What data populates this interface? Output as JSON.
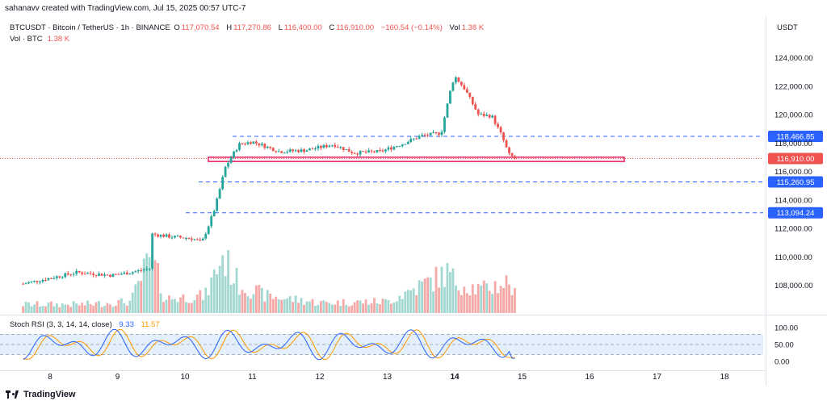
{
  "header": {
    "attribution": "sahanavv created with TradingView.com, Jul 15, 2025 00:57 UTC-7"
  },
  "legend": {
    "symbol": "BTCUSDT · Bitcoin / TetherUS · 1h · BINANCE",
    "o_label": "O",
    "o_value": "117,070.54",
    "h_label": "H",
    "h_value": "117,270.86",
    "l_label": "L",
    "l_value": "116,400.00",
    "c_label": "C",
    "c_value": "116,910.00",
    "change": "−160.54 (−0.14%)",
    "vol_label": "Vol",
    "vol_value": "1.38 K",
    "vol_row_label": "Vol · BTC",
    "vol_row_value": "1.38 K"
  },
  "price_axis": {
    "currency": "USDT",
    "ticks": [
      "124,000.00",
      "122,000.00",
      "120,000.00",
      "118,000.00",
      "116,000.00",
      "114,000.00",
      "112,000.00",
      "110,000.00",
      "108,000.00"
    ]
  },
  "levels": [
    {
      "value": 118466.85,
      "label": "118,466.85"
    },
    {
      "value": 115260.95,
      "label": "115,260.95"
    },
    {
      "value": 113094.24,
      "label": "113,094.24"
    }
  ],
  "current_price": {
    "value": 116910,
    "label": "116,910.00"
  },
  "rsi": {
    "title": "Stoch RSI",
    "params": "(3, 3, 14, 14, close)",
    "k_value": "9.33",
    "d_value": "11.57",
    "ticks": [
      "100.00",
      "50.00",
      "0.00"
    ]
  },
  "time_axis": {
    "labels": [
      "8",
      "9",
      "10",
      "11",
      "12",
      "13",
      "14",
      "15",
      "16",
      "17",
      "18"
    ],
    "bold_label": "14"
  },
  "footer": {
    "brand": "TradingView"
  },
  "colors": {
    "up": "#26a69a",
    "down": "#ef5350",
    "vol_up": "#a3d8d2",
    "vol_down": "#f5a9a7",
    "level": "#2962ff",
    "zone": "#e91e63",
    "rsi_k": "#2962ff",
    "rsi_d": "#ff9800"
  },
  "chart_data": {
    "type": "candlestick",
    "symbol": "BTCUSDT",
    "interval": "1h",
    "exchange": "BINANCE",
    "ylim": [
      106500,
      125000
    ],
    "x_days": [
      "8",
      "9",
      "10",
      "11",
      "12",
      "13",
      "14",
      "15",
      "16",
      "17",
      "18"
    ],
    "ohlc_anchors": [
      {
        "t": 7.6,
        "price": 108100
      },
      {
        "t": 8.0,
        "price": 108500
      },
      {
        "t": 8.4,
        "price": 108900
      },
      {
        "t": 8.9,
        "price": 108700
      },
      {
        "t": 9.2,
        "price": 108900
      },
      {
        "t": 9.49,
        "price": 109200
      },
      {
        "t": 9.5,
        "price": 111600
      },
      {
        "t": 9.8,
        "price": 111400
      },
      {
        "t": 10.1,
        "price": 111300
      },
      {
        "t": 10.25,
        "price": 111000
      },
      {
        "t": 10.35,
        "price": 112200
      },
      {
        "t": 10.45,
        "price": 113500
      },
      {
        "t": 10.6,
        "price": 116300
      },
      {
        "t": 10.8,
        "price": 117900
      },
      {
        "t": 11.0,
        "price": 118100
      },
      {
        "t": 11.4,
        "price": 117400
      },
      {
        "t": 11.8,
        "price": 117500
      },
      {
        "t": 12.2,
        "price": 117900
      },
      {
        "t": 12.5,
        "price": 117300
      },
      {
        "t": 12.9,
        "price": 117400
      },
      {
        "t": 13.2,
        "price": 117900
      },
      {
        "t": 13.5,
        "price": 118500
      },
      {
        "t": 13.8,
        "price": 118700
      },
      {
        "t": 13.95,
        "price": 122000
      },
      {
        "t": 14.0,
        "price": 122700
      },
      {
        "t": 14.15,
        "price": 121800
      },
      {
        "t": 14.35,
        "price": 120000
      },
      {
        "t": 14.55,
        "price": 119900
      },
      {
        "t": 14.7,
        "price": 118500
      },
      {
        "t": 14.8,
        "price": 117200
      },
      {
        "t": 14.9,
        "price": 116910
      }
    ],
    "support_zone": [
      116700,
      117000
    ],
    "volume_anchors": [
      {
        "t": 7.6,
        "vol": 0.15
      },
      {
        "t": 8.5,
        "vol": 0.15
      },
      {
        "t": 9.2,
        "vol": 0.2
      },
      {
        "t": 9.5,
        "vol": 1.0
      },
      {
        "t": 9.7,
        "vol": 0.25
      },
      {
        "t": 10.3,
        "vol": 0.3
      },
      {
        "t": 10.4,
        "vol": 0.55
      },
      {
        "t": 10.55,
        "vol": 1.0
      },
      {
        "t": 10.8,
        "vol": 0.5
      },
      {
        "t": 11.2,
        "vol": 0.3
      },
      {
        "t": 12.0,
        "vol": 0.18
      },
      {
        "t": 13.0,
        "vol": 0.2
      },
      {
        "t": 13.9,
        "vol": 0.7
      },
      {
        "t": 14.0,
        "vol": 0.55
      },
      {
        "t": 14.4,
        "vol": 0.4
      },
      {
        "t": 14.8,
        "vol": 0.55
      },
      {
        "t": 14.9,
        "vol": 0.3
      }
    ],
    "stoch_rsi": {
      "ylim": [
        0,
        100
      ],
      "bands": [
        20,
        80
      ],
      "k_last": 9.33,
      "d_last": 11.57
    }
  }
}
